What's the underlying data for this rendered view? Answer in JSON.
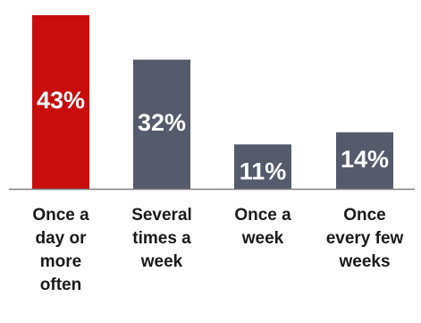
{
  "colors": {
    "highlight": "#c80d0d",
    "default": "#555b6b",
    "baseline": "#7f7f7f",
    "label_text": "#1a1a1a",
    "value_text": "#ffffff"
  },
  "chart_data": {
    "type": "bar",
    "title": "",
    "xlabel": "",
    "ylabel": "",
    "ylim": [
      0,
      45
    ],
    "grid": false,
    "legend": "none",
    "categories": [
      [
        "Once a",
        "day or",
        "more",
        "often"
      ],
      [
        "Several",
        "times a",
        "week"
      ],
      [
        "Once a",
        "week"
      ],
      [
        "Once",
        "every few",
        "weeks"
      ]
    ],
    "values": [
      43,
      32,
      11,
      14
    ],
    "labels": [
      "43%",
      "32%",
      "11%",
      "14%"
    ],
    "highlight_index": 0
  }
}
